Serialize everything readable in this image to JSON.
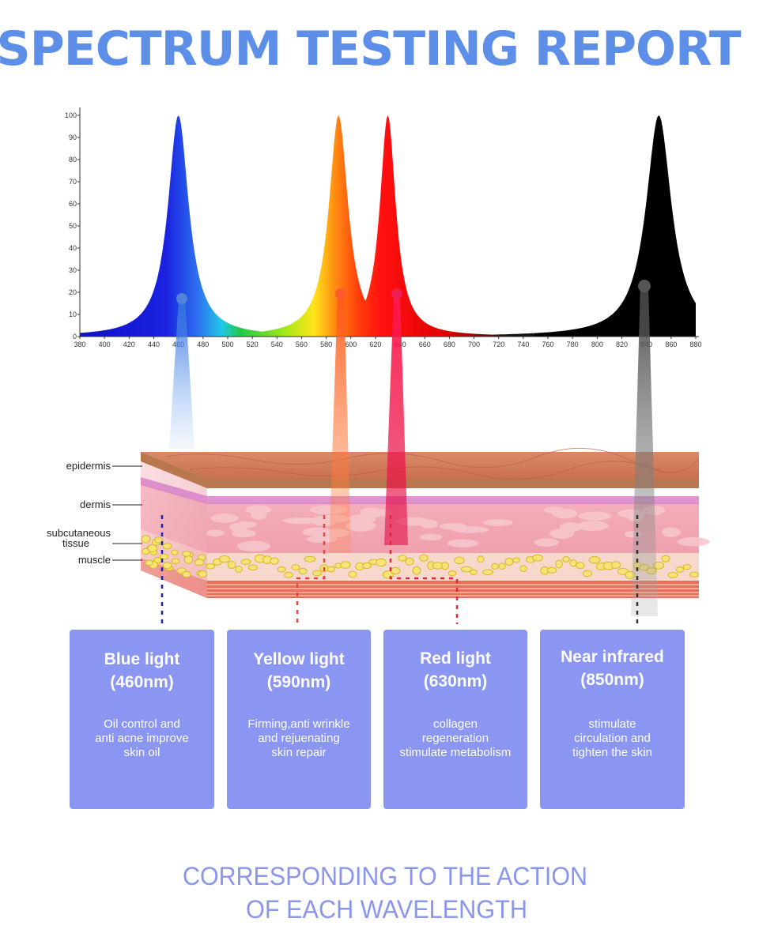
{
  "title": "SPECTRUM TESTING REPORT",
  "colors": {
    "title": "#5d8ee8",
    "card_bg": "#8a96f2",
    "footer": "#8a96ee",
    "blue_beam": "#3a7ee6",
    "yellow_beam": "#ff6a2a",
    "red_beam": "#ea1f4a",
    "nir_beam": "#555555"
  },
  "chart_data": {
    "type": "area",
    "xlim": [
      380,
      880
    ],
    "ylim": [
      0,
      100
    ],
    "x_ticks": [
      380,
      400,
      420,
      440,
      460,
      480,
      500,
      520,
      540,
      560,
      580,
      600,
      620,
      640,
      660,
      680,
      700,
      720,
      740,
      760,
      780,
      800,
      820,
      840,
      860,
      880
    ],
    "y_ticks": [
      0,
      10,
      20,
      30,
      40,
      50,
      60,
      70,
      80,
      90,
      100
    ],
    "grid": false,
    "series": [
      {
        "peak_nm": 460,
        "value": 100,
        "color": "#1a1ad8"
      },
      {
        "peak_nm": 590,
        "value": 100,
        "color": "#ff7a1a"
      },
      {
        "peak_nm": 630,
        "value": 100,
        "color": "#ff1a1a"
      },
      {
        "peak_nm": 850,
        "value": 100,
        "color": "#000000"
      }
    ]
  },
  "skin": {
    "labels": [
      "epidermis",
      "dermis",
      "subcutaneous\ntissue",
      "muscle"
    ]
  },
  "cards": [
    {
      "title": "Blue light",
      "wavelength": "(460nm)",
      "desc": [
        "Oil control and",
        "anti acne improve",
        "skin oil"
      ]
    },
    {
      "title": "Yellow light",
      "wavelength": "(590nm)",
      "desc": [
        "Firming,anti wrinkle",
        "and rejuenating",
        "skin repair"
      ]
    },
    {
      "title": "Red light",
      "wavelength": "(630nm)",
      "desc": [
        "collagen",
        "regeneration",
        "stimulate metabolism"
      ]
    },
    {
      "title": "Near infrared",
      "wavelength": "(850nm)",
      "desc": [
        "stimulate",
        "circulation and",
        "tighten the skin"
      ]
    }
  ],
  "footer": [
    "CORRESPONDING TO THE ACTION",
    "OF EACH WAVELENGTH"
  ]
}
